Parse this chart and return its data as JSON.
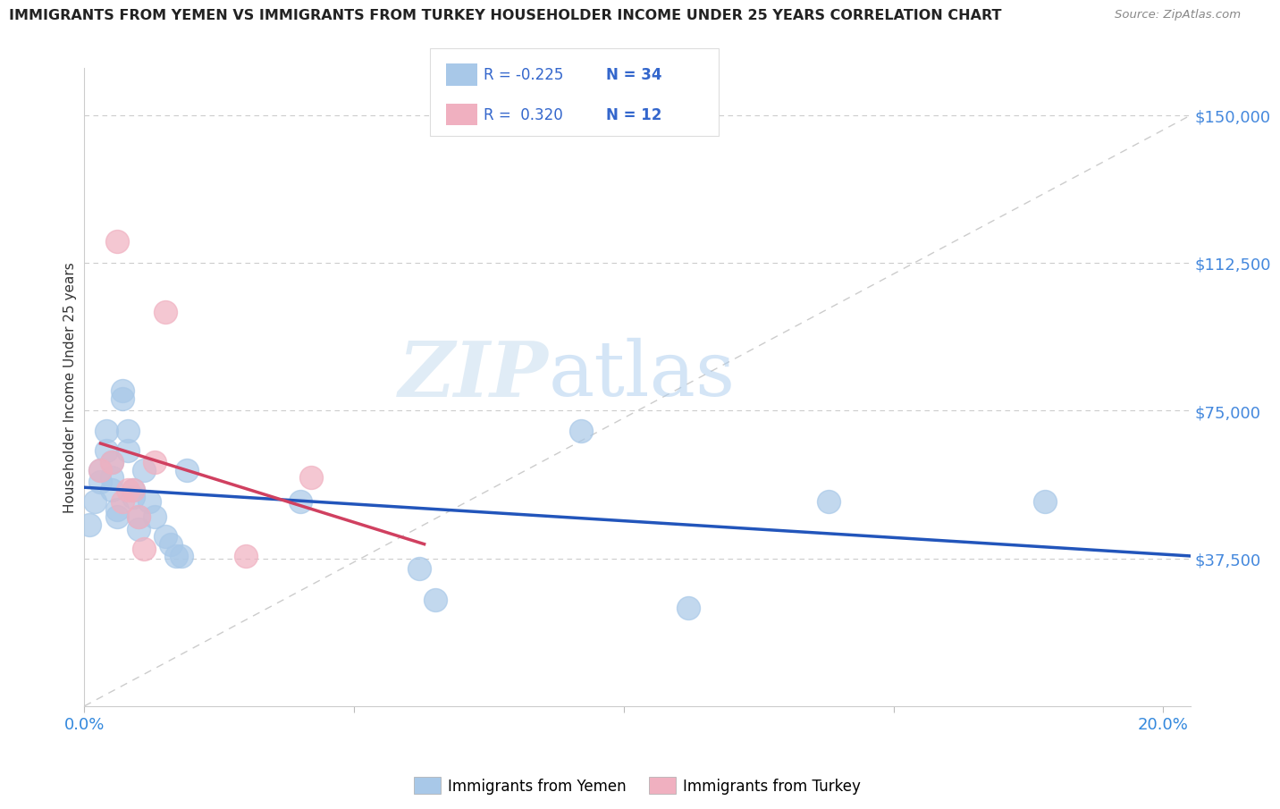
{
  "title": "IMMIGRANTS FROM YEMEN VS IMMIGRANTS FROM TURKEY HOUSEHOLDER INCOME UNDER 25 YEARS CORRELATION CHART",
  "source": "Source: ZipAtlas.com",
  "ylabel": "Householder Income Under 25 years",
  "xlim": [
    0.0,
    0.205
  ],
  "ylim": [
    0,
    162000
  ],
  "yticks": [
    0,
    37500,
    75000,
    112500,
    150000
  ],
  "ytick_labels": [
    "",
    "$37,500",
    "$75,000",
    "$112,500",
    "$150,000"
  ],
  "xticks": [
    0.0,
    0.05,
    0.1,
    0.15,
    0.2
  ],
  "xtick_labels": [
    "0.0%",
    "",
    "",
    "",
    "20.0%"
  ],
  "legend_labels": [
    "Immigrants from Yemen",
    "Immigrants from Turkey"
  ],
  "r_yemen": -0.225,
  "n_yemen": 34,
  "r_turkey": 0.32,
  "n_turkey": 12,
  "yemen_color": "#a8c8e8",
  "turkey_color": "#f0b0c0",
  "yemen_line_color": "#2255bb",
  "turkey_line_color": "#d04060",
  "diag_color": "#cccccc",
  "watermark_zip": "ZIP",
  "watermark_atlas": "atlas",
  "yemen_x": [
    0.001,
    0.002,
    0.003,
    0.003,
    0.004,
    0.004,
    0.005,
    0.005,
    0.005,
    0.006,
    0.006,
    0.007,
    0.007,
    0.008,
    0.008,
    0.009,
    0.009,
    0.01,
    0.01,
    0.011,
    0.012,
    0.013,
    0.015,
    0.016,
    0.017,
    0.018,
    0.019,
    0.04,
    0.062,
    0.065,
    0.092,
    0.112,
    0.138,
    0.178
  ],
  "yemen_y": [
    46000,
    52000,
    57000,
    60000,
    65000,
    70000,
    58000,
    62000,
    55000,
    50000,
    48000,
    80000,
    78000,
    65000,
    70000,
    55000,
    53000,
    48000,
    45000,
    60000,
    52000,
    48000,
    43000,
    41000,
    38000,
    38000,
    60000,
    52000,
    35000,
    27000,
    70000,
    25000,
    52000,
    52000
  ],
  "turkey_x": [
    0.003,
    0.005,
    0.006,
    0.007,
    0.008,
    0.009,
    0.01,
    0.011,
    0.013,
    0.015,
    0.03,
    0.042
  ],
  "turkey_y": [
    60000,
    62000,
    118000,
    52000,
    55000,
    55000,
    48000,
    40000,
    62000,
    100000,
    38000,
    58000
  ]
}
